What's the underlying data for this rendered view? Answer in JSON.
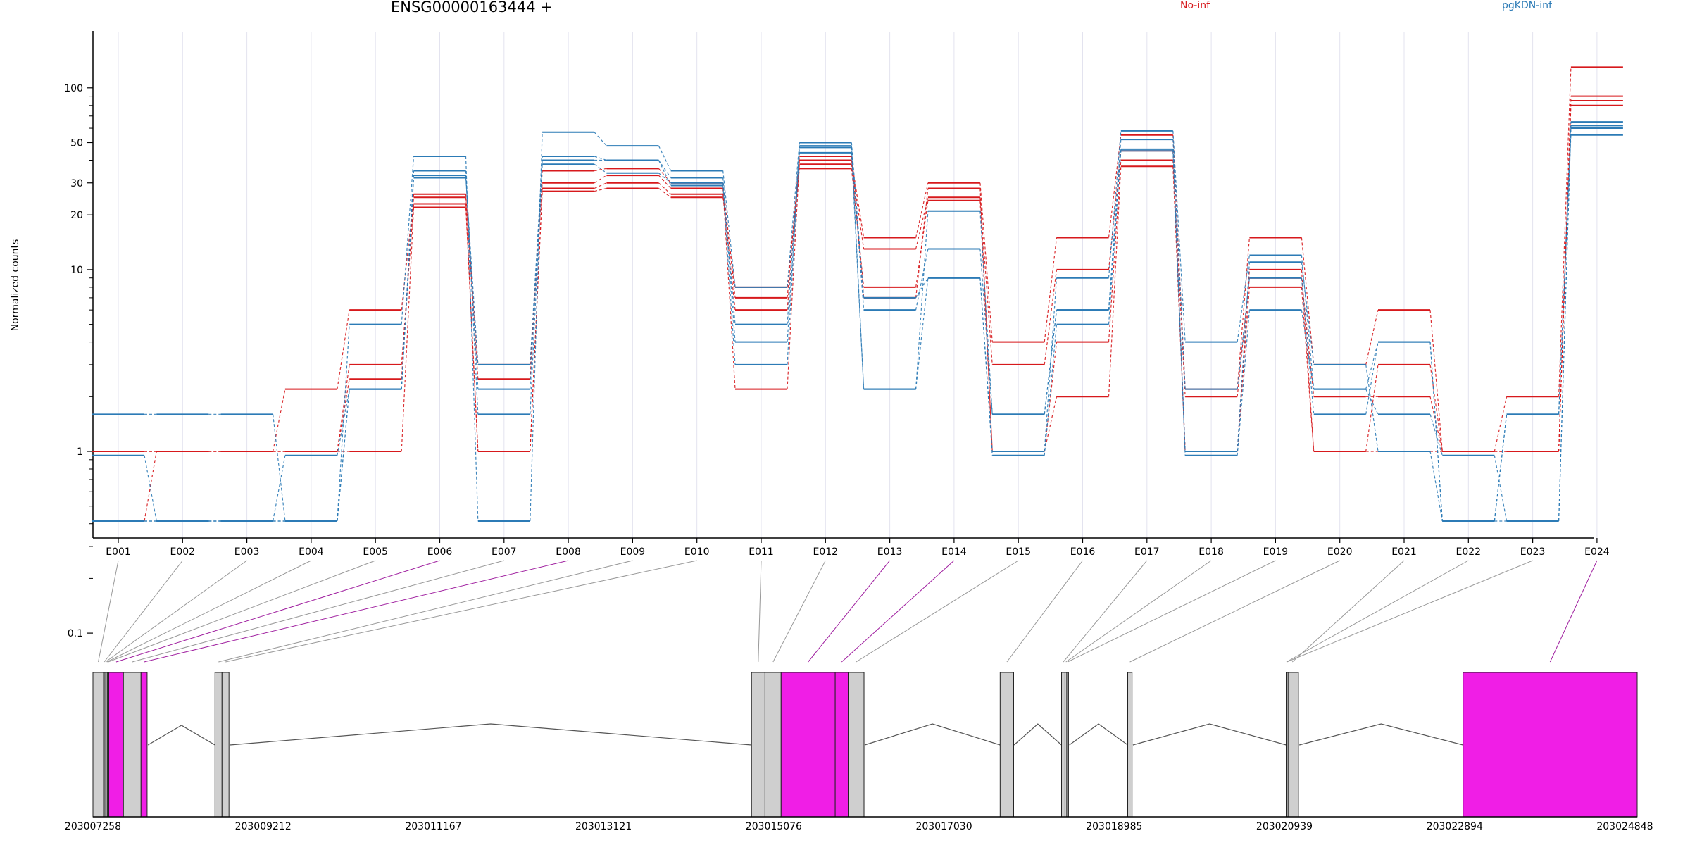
{
  "chart_data": {
    "type": "line",
    "title": "ENSG00000163444 +",
    "xlabel": "",
    "ylabel": "Normalized counts",
    "yscale": "log",
    "ylim": [
      0.08,
      140
    ],
    "yticks": [
      0.1,
      1,
      10,
      20,
      30,
      50,
      100
    ],
    "grid": "vertical-light",
    "legend": [
      {
        "label": "No-inf",
        "color": "#d7191c",
        "position": "top-center"
      },
      {
        "label": "pgKDN-inf",
        "color": "#2c7bb6",
        "position": "top-right"
      }
    ],
    "categories": [
      "E001",
      "E002",
      "E003",
      "E004",
      "E005",
      "E006",
      "E007",
      "E008",
      "E009",
      "E010",
      "E011",
      "E012",
      "E013",
      "E014",
      "E015",
      "E016",
      "E017",
      "E018",
      "E019",
      "E020",
      "E021",
      "E022",
      "E023",
      "E024"
    ],
    "significant_exons": [
      "E006",
      "E008",
      "E013",
      "E014",
      "E024"
    ],
    "series": [
      {
        "group": "No-inf",
        "color": "#d7191c",
        "values": [
          1,
          1,
          1,
          2.2,
          6,
          25,
          3,
          30,
          33,
          28,
          2.2,
          40,
          15,
          30,
          4,
          15,
          55,
          2.2,
          15,
          3,
          6,
          1,
          2,
          130
        ]
      },
      {
        "group": "No-inf",
        "color": "#d7191c",
        "values": [
          1,
          1,
          1,
          1,
          3,
          23,
          1,
          28,
          30,
          26,
          6,
          38,
          13,
          25,
          3,
          10,
          45,
          1,
          8,
          1,
          3,
          1,
          1,
          90
        ]
      },
      {
        "group": "No-inf",
        "color": "#d7191c",
        "values": [
          1,
          1,
          1,
          1,
          1,
          22,
          1,
          27,
          28,
          25,
          8,
          36,
          8,
          24,
          1,
          4,
          40,
          2,
          9,
          2,
          2,
          1,
          1,
          85
        ]
      },
      {
        "group": "No-inf",
        "color": "#d7191c",
        "values": [
          0.07,
          1,
          1,
          1,
          2.5,
          26,
          2.5,
          35,
          36,
          30,
          7,
          42,
          7,
          28,
          1,
          2,
          37,
          1,
          10,
          1,
          1,
          1,
          1,
          80
        ]
      },
      {
        "group": "pgKDN-inf",
        "color": "#2c7bb6",
        "values": [
          1.6,
          1.6,
          1.6,
          0.07,
          5,
          42,
          0.07,
          57,
          48,
          35,
          8,
          50,
          7,
          9,
          1,
          9,
          58,
          4,
          12,
          2.2,
          4,
          0.07,
          1.6,
          65
        ]
      },
      {
        "group": "pgKDN-inf",
        "color": "#2c7bb6",
        "values": [
          0.07,
          0.07,
          0.07,
          0.07,
          2.2,
          33,
          2.2,
          42,
          40,
          32,
          4,
          44,
          2.2,
          21,
          1.6,
          6,
          45,
          1,
          11,
          3,
          1,
          0.07,
          0.07,
          60
        ]
      },
      {
        "group": "pgKDN-inf",
        "color": "#2c7bb6",
        "values": [
          0.07,
          0.07,
          0.07,
          0.07,
          2.2,
          35,
          1.6,
          38,
          34,
          30,
          5,
          47,
          6,
          13,
          1.6,
          6,
          52,
          2.2,
          9,
          1.6,
          4,
          0.07,
          1.6,
          55
        ]
      },
      {
        "group": "pgKDN-inf",
        "color": "#2c7bb6",
        "values": [
          0.95,
          0.07,
          0.07,
          0.95,
          2.2,
          32,
          3,
          40,
          40,
          29,
          3,
          48,
          2.2,
          9,
          0.95,
          5,
          46,
          0.95,
          6,
          2.2,
          1.6,
          0.95,
          0.07,
          62
        ]
      }
    ],
    "exons": [
      {
        "id": "E001",
        "start": 203007258,
        "end": 203007380
      },
      {
        "id": "E002",
        "start": 203007380,
        "end": 203007395
      },
      {
        "id": "E003",
        "start": 203007395,
        "end": 203007410
      },
      {
        "id": "E004",
        "start": 203007410,
        "end": 203007425
      },
      {
        "id": "E005",
        "start": 203007425,
        "end": 203007440
      },
      {
        "id": "E006",
        "start": 203007440,
        "end": 203007608
      },
      {
        "id": "E007",
        "start": 203007608,
        "end": 203007810
      },
      {
        "id": "E008",
        "start": 203007810,
        "end": 203007880
      },
      {
        "id": "E009",
        "start": 203008659,
        "end": 203008740
      },
      {
        "id": "E010",
        "start": 203008740,
        "end": 203008820
      },
      {
        "id": "E011",
        "start": 203014820,
        "end": 203014975
      },
      {
        "id": "E012",
        "start": 203014975,
        "end": 203015160
      },
      {
        "id": "E013",
        "start": 203015160,
        "end": 203015781
      },
      {
        "id": "E014",
        "start": 203015781,
        "end": 203015930
      },
      {
        "id": "E015",
        "start": 203015930,
        "end": 203016112
      },
      {
        "id": "E016",
        "start": 203017675,
        "end": 203017830
      },
      {
        "id": "E017",
        "start": 203018380,
        "end": 203018420
      },
      {
        "id": "E018",
        "start": 203018420,
        "end": 203018440
      },
      {
        "id": "E019",
        "start": 203018440,
        "end": 203018460
      },
      {
        "id": "E020",
        "start": 203019140,
        "end": 203019190
      },
      {
        "id": "E021",
        "start": 203020960,
        "end": 203021100
      },
      {
        "id": "E022",
        "start": 203020960,
        "end": 203020965
      },
      {
        "id": "E023",
        "start": 203020965,
        "end": 203020970
      },
      {
        "id": "E024",
        "start": 203022990,
        "end": 203024990
      }
    ],
    "genomic_ticks": [
      203007258,
      203009212,
      203011167,
      203013121,
      203015076,
      203017030,
      203018985,
      203020939,
      203022894,
      203024848
    ],
    "genomic_range": [
      203007258,
      203024990
    ]
  }
}
